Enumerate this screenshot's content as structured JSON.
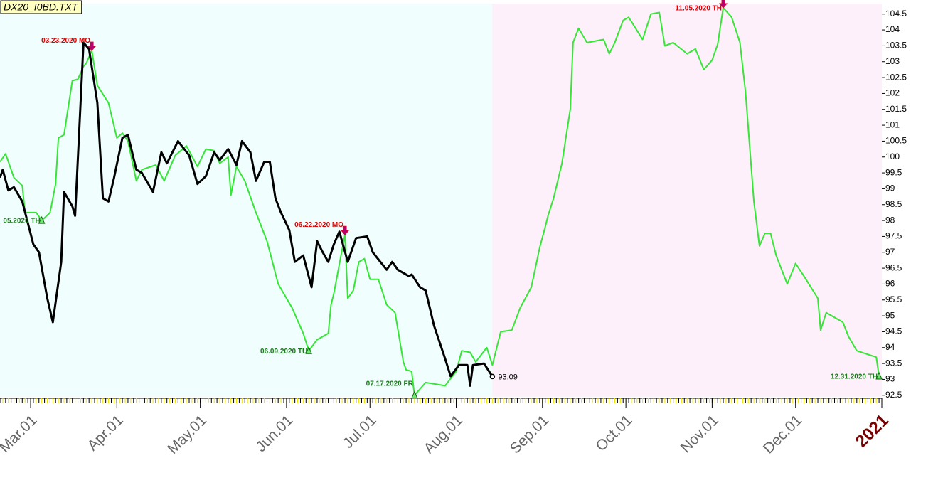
{
  "chart_data": {
    "type": "line",
    "title": "DX20_I0BD.TXT",
    "xlim": [
      "2020-02-19",
      "2021-01-01"
    ],
    "ylim": [
      92.45,
      104.83
    ],
    "yticks": [
      92.5,
      93,
      93.5,
      94,
      94.5,
      95,
      95.5,
      96,
      96.5,
      97,
      97.5,
      98,
      98.5,
      99,
      99.5,
      100,
      100.5,
      101,
      101.5,
      102,
      102.5,
      103,
      103.5,
      104,
      104.5
    ],
    "xticks": [
      {
        "value": "2020-03-01",
        "label": "Mar.01"
      },
      {
        "value": "2020-04-01",
        "label": "Apr.01"
      },
      {
        "value": "2020-05-01",
        "label": "May.01"
      },
      {
        "value": "2020-06-01",
        "label": "Jun.01"
      },
      {
        "value": "2020-07-01",
        "label": "Jul.01"
      },
      {
        "value": "2020-08-01",
        "label": "Aug.01"
      },
      {
        "value": "2020-09-01",
        "label": "Sep.01"
      },
      {
        "value": "2020-10-01",
        "label": "Oct.01"
      },
      {
        "value": "2020-11-01",
        "label": "Nov.01"
      },
      {
        "value": "2020-12-01",
        "label": "Dec.01"
      },
      {
        "value": "2021-01-01",
        "label": "2021"
      }
    ],
    "series": [
      {
        "color": "#35e635",
        "x": [
          "2020-02-19",
          "2020-02-21",
          "2020-02-24",
          "2020-02-27",
          "2020-02-28",
          "2020-03-03",
          "2020-03-05",
          "2020-03-08",
          "2020-03-10",
          "2020-03-11",
          "2020-03-13",
          "2020-03-16",
          "2020-03-18",
          "2020-03-20",
          "2020-03-21",
          "2020-03-23",
          "2020-03-25",
          "2020-03-29",
          "2020-04-01",
          "2020-04-03",
          "2020-04-05",
          "2020-04-08",
          "2020-04-10",
          "2020-04-15",
          "2020-04-18",
          "2020-04-22",
          "2020-04-26",
          "2020-04-30",
          "2020-05-03",
          "2020-05-06",
          "2020-05-08",
          "2020-05-11",
          "2020-05-12",
          "2020-05-14",
          "2020-05-17",
          "2020-05-21",
          "2020-05-25",
          "2020-05-29",
          "2020-06-03",
          "2020-06-07",
          "2020-06-09",
          "2020-06-12",
          "2020-06-16",
          "2020-06-17",
          "2020-06-18",
          "2020-06-22",
          "2020-06-23",
          "2020-06-25",
          "2020-06-27",
          "2020-06-29",
          "2020-07-01",
          "2020-07-04",
          "2020-07-07",
          "2020-07-10",
          "2020-07-13",
          "2020-07-14",
          "2020-07-16",
          "2020-07-17",
          "2020-07-21",
          "2020-07-28",
          "2020-08-01",
          "2020-08-03",
          "2020-08-06",
          "2020-08-08",
          "2020-08-12",
          "2020-08-14",
          "2020-08-17",
          "2020-08-21",
          "2020-08-24",
          "2020-08-28",
          "2020-08-31",
          "2020-09-02",
          "2020-09-03",
          "2020-09-05",
          "2020-09-08",
          "2020-09-11",
          "2020-09-12",
          "2020-09-14",
          "2020-09-17",
          "2020-09-23",
          "2020-09-25",
          "2020-09-27",
          "2020-09-30",
          "2020-10-02",
          "2020-10-07",
          "2020-10-10",
          "2020-10-13",
          "2020-10-15",
          "2020-10-18",
          "2020-10-23",
          "2020-10-26",
          "2020-10-29",
          "2020-11-01",
          "2020-11-03",
          "2020-11-05",
          "2020-11-08",
          "2020-11-11",
          "2020-11-13",
          "2020-11-16",
          "2020-11-18",
          "2020-11-20",
          "2020-11-22",
          "2020-11-24",
          "2020-11-28",
          "2020-12-01",
          "2020-12-04",
          "2020-12-09",
          "2020-12-10",
          "2020-12-12",
          "2020-12-18",
          "2020-12-20",
          "2020-12-23",
          "2020-12-30",
          "2020-12-31"
        ],
        "values": [
          99.85,
          100.1,
          99.35,
          99.1,
          98.25,
          98.25,
          98.0,
          98.25,
          99.15,
          100.6,
          100.7,
          102.4,
          102.45,
          102.85,
          102.95,
          103.35,
          102.25,
          101.7,
          100.6,
          100.75,
          100.5,
          99.25,
          99.6,
          99.75,
          99.25,
          100.05,
          100.35,
          99.7,
          100.25,
          100.2,
          99.8,
          100.0,
          98.8,
          99.7,
          99.25,
          98.25,
          97.35,
          96.0,
          95.25,
          94.45,
          93.9,
          94.25,
          94.45,
          95.35,
          95.7,
          97.55,
          95.55,
          95.8,
          96.7,
          96.8,
          96.15,
          96.15,
          95.35,
          95.1,
          93.55,
          93.3,
          93.25,
          92.5,
          92.9,
          92.8,
          93.25,
          93.9,
          93.85,
          93.55,
          94.0,
          93.45,
          94.5,
          94.55,
          95.25,
          95.9,
          97.15,
          97.8,
          98.15,
          98.7,
          99.8,
          101.5,
          103.6,
          104.05,
          103.6,
          103.7,
          103.25,
          103.6,
          104.3,
          104.4,
          103.7,
          104.5,
          104.55,
          103.5,
          103.6,
          103.25,
          103.4,
          102.75,
          103.05,
          103.55,
          104.7,
          104.4,
          103.6,
          102.05,
          98.6,
          97.2,
          97.6,
          97.6,
          96.9,
          96.0,
          96.65,
          96.25,
          95.55,
          94.55,
          95.1,
          94.8,
          94.35,
          93.9,
          93.7,
          93.1
        ]
      },
      {
        "color": "#000000",
        "x": [
          "2020-02-19",
          "2020-02-20",
          "2020-02-22",
          "2020-02-24",
          "2020-02-27",
          "2020-03-02",
          "2020-03-04",
          "2020-03-07",
          "2020-03-09",
          "2020-03-12",
          "2020-03-13",
          "2020-03-16",
          "2020-03-17",
          "2020-03-20",
          "2020-03-22",
          "2020-03-25",
          "2020-03-27",
          "2020-03-29",
          "2020-03-31",
          "2020-04-03",
          "2020-04-05",
          "2020-04-08",
          "2020-04-10",
          "2020-04-14",
          "2020-04-17",
          "2020-04-19",
          "2020-04-23",
          "2020-04-27",
          "2020-04-30",
          "2020-05-03",
          "2020-05-06",
          "2020-05-08",
          "2020-05-11",
          "2020-05-14",
          "2020-05-16",
          "2020-05-19",
          "2020-05-21",
          "2020-05-24",
          "2020-05-26",
          "2020-05-28",
          "2020-05-30",
          "2020-06-02",
          "2020-06-04",
          "2020-06-07",
          "2020-06-10",
          "2020-06-12",
          "2020-06-14",
          "2020-06-16",
          "2020-06-18",
          "2020-06-20",
          "2020-06-23",
          "2020-06-26",
          "2020-06-30",
          "2020-07-02",
          "2020-07-07",
          "2020-07-09",
          "2020-07-11",
          "2020-07-15",
          "2020-07-16",
          "2020-07-19",
          "2020-07-21",
          "2020-07-24",
          "2020-07-28",
          "2020-07-30",
          "2020-08-02",
          "2020-08-05",
          "2020-08-06",
          "2020-08-07",
          "2020-08-11",
          "2020-08-14"
        ],
        "values": [
          99.35,
          99.6,
          98.95,
          99.05,
          98.6,
          97.25,
          97.0,
          95.55,
          94.8,
          96.7,
          98.9,
          98.45,
          98.15,
          103.6,
          103.4,
          101.7,
          98.7,
          98.6,
          99.35,
          100.6,
          100.7,
          99.6,
          99.5,
          98.9,
          100.15,
          99.8,
          100.5,
          100.05,
          99.15,
          99.4,
          100.15,
          99.9,
          100.25,
          99.75,
          100.5,
          100.15,
          99.25,
          99.85,
          99.85,
          98.7,
          98.25,
          97.7,
          96.7,
          96.9,
          95.9,
          97.35,
          97.0,
          96.7,
          97.25,
          97.65,
          96.7,
          97.45,
          97.5,
          97.0,
          96.45,
          96.7,
          96.45,
          96.25,
          96.3,
          95.9,
          95.8,
          94.7,
          93.65,
          93.1,
          93.45,
          93.45,
          92.8,
          93.45,
          93.5,
          93.09
        ]
      }
    ],
    "annotations": [
      {
        "label": "03.23.2020 MO",
        "x": "2020-03-23",
        "value": 103.35,
        "kind": "high"
      },
      {
        "label": "05.2020 TH",
        "x": "2020-03-05",
        "value": 98.0,
        "kind": "low"
      },
      {
        "label": "06.09.2020 TU",
        "x": "2020-06-09",
        "value": 93.9,
        "kind": "low"
      },
      {
        "label": "06.22.2020 MO",
        "x": "2020-06-22",
        "value": 97.55,
        "kind": "high"
      },
      {
        "label": "07.17.2020 FR",
        "x": "2020-07-17",
        "value": 92.5,
        "kind": "low"
      },
      {
        "label": "11.05.2020 TH",
        "x": "2020-11-05",
        "value": 104.7,
        "kind": "high"
      },
      {
        "label": "12.31.2020 TH",
        "x": "2020-12-31",
        "value": 93.1,
        "kind": "low"
      }
    ]
  }
}
